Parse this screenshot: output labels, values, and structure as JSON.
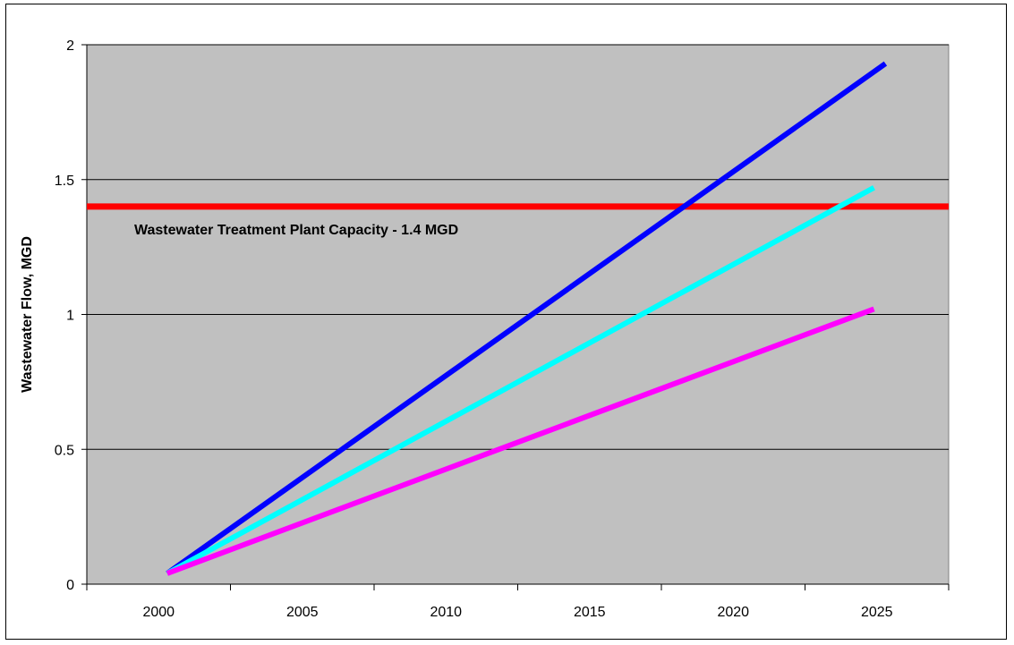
{
  "chart_data": {
    "type": "line",
    "title": "",
    "xlabel": "",
    "ylabel": "Wastewater Flow, MGD",
    "xlim": [
      1997.5,
      2027.5
    ],
    "ylim": [
      0,
      2
    ],
    "x_ticks": [
      2000,
      2005,
      2010,
      2015,
      2020,
      2025
    ],
    "x_tick_labels": [
      "2000",
      "2005",
      "2010",
      "2015",
      "2020",
      "2025"
    ],
    "y_ticks": [
      0,
      0.5,
      1,
      1.5,
      2
    ],
    "y_tick_labels": [
      "0",
      "0.5",
      "1",
      "1.5",
      "2"
    ],
    "grid": "horizontal",
    "plot_background": "#c0c0c0",
    "legend": "none",
    "series": [
      {
        "color": "#0000ff",
        "x": [
          2000.3,
          2025.3
        ],
        "y": [
          0.04,
          1.93
        ]
      },
      {
        "color": "#00ffff",
        "x": [
          2000.3,
          2024.9
        ],
        "y": [
          0.04,
          1.47
        ]
      },
      {
        "color": "#ff00ff",
        "x": [
          2000.3,
          2024.9
        ],
        "y": [
          0.04,
          1.02
        ]
      }
    ],
    "reference_line": {
      "color": "#ff0000",
      "y": 1.4,
      "x": [
        1997.5,
        2027.5
      ],
      "label": "Wastewater Treatment Plant Capacity - 1.4 MGD"
    }
  }
}
